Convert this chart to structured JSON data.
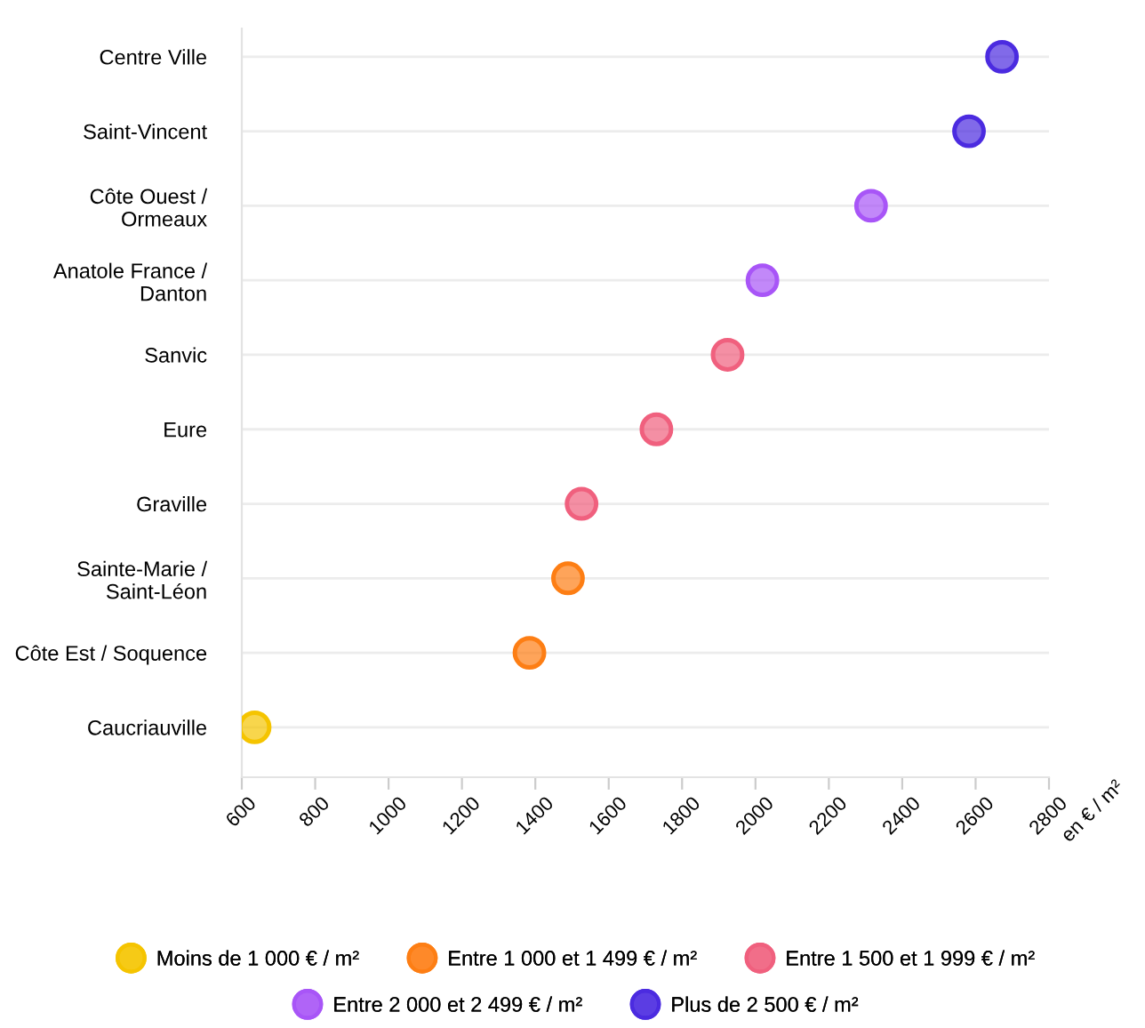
{
  "chart_data": {
    "type": "scatter",
    "orientation": "horizontal",
    "xlabel": "en € / m²",
    "categories": [
      "Centre Ville",
      "Saint-Vincent",
      "Côte Ouest /\nOrmeaux",
      "Anatole France /\nDanton",
      "Sanvic",
      "Eure",
      "Graville",
      "Sainte-Marie /\nSaint-Léon",
      "Côte Est / Soquence",
      "Caucriauville"
    ],
    "series": [
      {
        "name": "Moins de 1 000 € / m²",
        "color": "#f5c400",
        "values": [
          null,
          null,
          null,
          null,
          null,
          null,
          null,
          null,
          null,
          635
        ]
      },
      {
        "name": "Entre 1 000 et 1 499 € / m²",
        "color": "#fd7e14",
        "values": [
          null,
          null,
          null,
          null,
          null,
          null,
          null,
          1489,
          1384,
          null
        ]
      },
      {
        "name": "Entre 1 500 et 1 999 € / m²",
        "color": "#f0607e",
        "values": [
          null,
          null,
          null,
          null,
          1924,
          1730,
          1526,
          null,
          null,
          null
        ]
      },
      {
        "name": "Entre 2 000 et 2 499 € / m²",
        "color": "#a855f7",
        "values": [
          null,
          null,
          2315,
          2019,
          null,
          null,
          null,
          null,
          null,
          null
        ]
      },
      {
        "name": "Plus de 2 500 € / m²",
        "color": "#4b2be0",
        "values": [
          2672,
          2582,
          null,
          null,
          null,
          null,
          null,
          null,
          null,
          null
        ]
      }
    ],
    "xlim": [
      600,
      2800
    ],
    "xticks": [
      600,
      800,
      1000,
      1200,
      1400,
      1600,
      1800,
      2000,
      2200,
      2400,
      2600,
      2800
    ],
    "grid": "y",
    "legend": "bottom",
    "marker": "circle"
  }
}
